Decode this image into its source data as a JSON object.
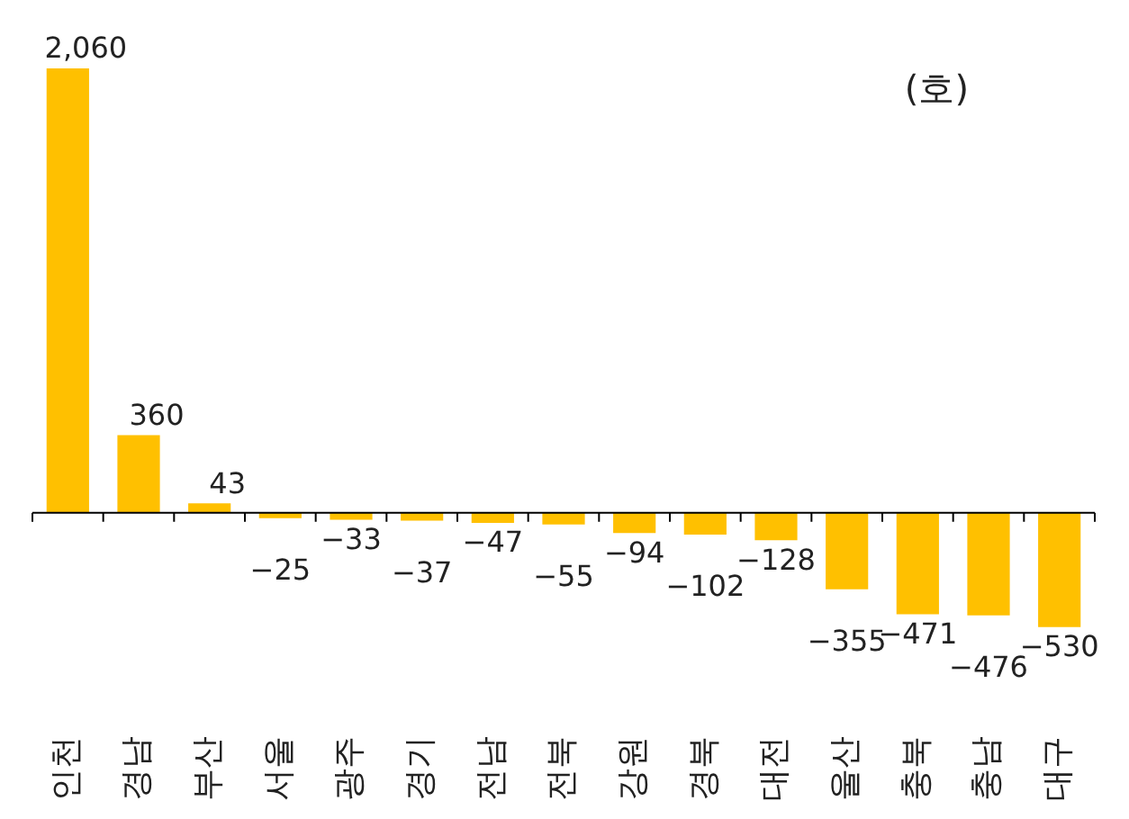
{
  "chart_data": {
    "type": "bar",
    "categories": [
      "인천",
      "경남",
      "부산",
      "서울",
      "광주",
      "경기",
      "전남",
      "전북",
      "강원",
      "경북",
      "대전",
      "울산",
      "충북",
      "충남",
      "대구"
    ],
    "values": [
      2060,
      360,
      43,
      -25,
      -33,
      -37,
      -47,
      -55,
      -94,
      -102,
      -128,
      -355,
      -471,
      -476,
      -530
    ],
    "value_labels": [
      "2,060",
      "360",
      "43",
      "−25",
      "−33",
      "−37",
      "−47",
      "−55",
      "−94",
      "−102",
      "−128",
      "−355",
      "−471",
      "−476",
      "−530"
    ],
    "color": "#ffc000",
    "annotations": [
      "(호)"
    ],
    "grid": false,
    "legend": false
  }
}
